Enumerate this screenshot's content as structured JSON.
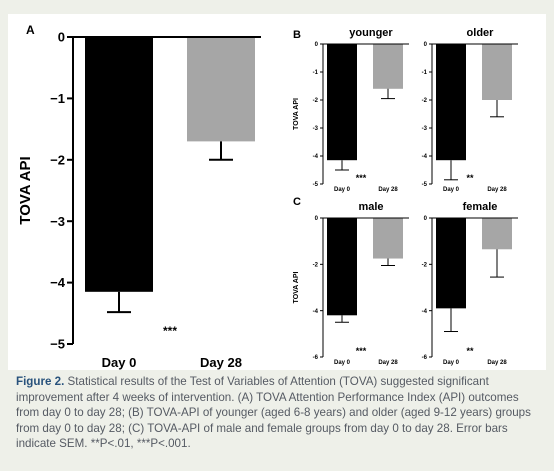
{
  "figure": {
    "caption_label": "Figure 2.",
    "caption_text": " Statistical results of the Test of Variables of Attention (TOVA) suggested significant improvement after 4 weeks of intervention. (A) TOVA Attention Performance Index (API) outcomes from day 0 to day 28; (B) TOVA-API of younger (aged 6-8 years) and older (aged 9-12 years) groups from day 0 to day 28; (C) TOVA-API of male and female groups from day 0 to day 28. Error bars indicate SEM. **P<.01, ***P<.001."
  },
  "colors": {
    "day0": "#000000",
    "day28": "#a6a6a6",
    "panel_bg": "#ffffff",
    "figure_bg": "#eef0e9"
  },
  "chart_data": [
    {
      "id": "A",
      "panel_label": "A",
      "type": "bar",
      "title": "",
      "ylabel": "TOVA API",
      "xlabel": "",
      "categories": [
        "Day 0",
        "Day 28"
      ],
      "values": [
        -4.15,
        -1.7
      ],
      "errors": [
        0.33,
        0.3
      ],
      "ylim": [
        -5,
        0
      ],
      "yticks": [
        "0",
        "−1",
        "−2",
        "−3",
        "−4",
        "−5"
      ],
      "annotation": "***"
    },
    {
      "id": "B1",
      "panel_label": "B",
      "type": "bar",
      "title": "younger",
      "ylabel": "TOVA API",
      "xlabel": "",
      "categories": [
        "Day 0",
        "Day 28"
      ],
      "values": [
        -4.15,
        -1.6
      ],
      "errors": [
        0.35,
        0.35
      ],
      "ylim": [
        -5,
        0
      ],
      "yticks": [
        "0",
        "-1",
        "-2",
        "-3",
        "-4",
        "-5"
      ],
      "annotation": "***"
    },
    {
      "id": "B2",
      "panel_label": "",
      "type": "bar",
      "title": "older",
      "ylabel": "",
      "xlabel": "",
      "categories": [
        "Day 0",
        "Day 28"
      ],
      "values": [
        -4.15,
        -2.0
      ],
      "errors": [
        0.7,
        0.6
      ],
      "ylim": [
        -5,
        0
      ],
      "yticks": [
        "0",
        "-1",
        "-2",
        "-3",
        "-4",
        "-5"
      ],
      "annotation": "**"
    },
    {
      "id": "C1",
      "panel_label": "C",
      "type": "bar",
      "title": "male",
      "ylabel": "TOVA API",
      "xlabel": "",
      "categories": [
        "Day 0",
        "Day 28"
      ],
      "values": [
        -4.2,
        -1.75
      ],
      "errors": [
        0.3,
        0.3
      ],
      "ylim": [
        -6,
        0
      ],
      "yticks": [
        "0",
        "-2",
        "-4",
        "-6"
      ],
      "annotation": "***"
    },
    {
      "id": "C2",
      "panel_label": "",
      "type": "bar",
      "title": "female",
      "ylabel": "",
      "xlabel": "",
      "categories": [
        "Day 0",
        "Day 28"
      ],
      "values": [
        -3.9,
        -1.35
      ],
      "errors": [
        1.0,
        1.2
      ],
      "ylim": [
        -6,
        0
      ],
      "yticks": [
        "0",
        "-2",
        "-4",
        "-6"
      ],
      "annotation": "**"
    }
  ]
}
